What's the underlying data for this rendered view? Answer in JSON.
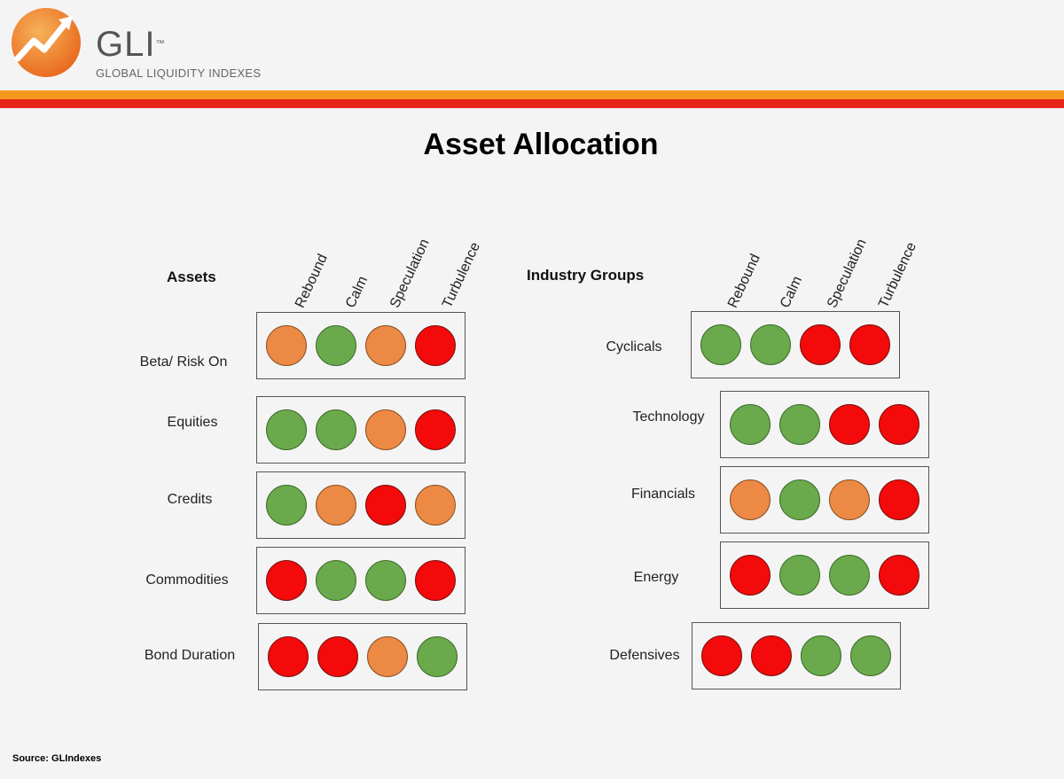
{
  "header": {
    "logo_title": "GLI",
    "logo_tm": "™",
    "logo_subtitle": "GLOBAL LIQUIDITY INDEXES"
  },
  "title": "Asset Allocation",
  "columns": [
    "Rebound",
    "Calm",
    "Speculation",
    "Turbulence"
  ],
  "assets": {
    "heading": "Assets",
    "rows": [
      {
        "label": "Beta/ Risk On",
        "signals": [
          "orange",
          "green",
          "orange",
          "red"
        ]
      },
      {
        "label": "Equities",
        "signals": [
          "green",
          "green",
          "orange",
          "red"
        ]
      },
      {
        "label": "Credits",
        "signals": [
          "green",
          "orange",
          "red",
          "orange"
        ]
      },
      {
        "label": "Commodities",
        "signals": [
          "red",
          "green",
          "green",
          "red"
        ]
      },
      {
        "label": "Bond Duration",
        "signals": [
          "red",
          "red",
          "orange",
          "green"
        ]
      }
    ]
  },
  "industry": {
    "heading": "Industry Groups",
    "rows": [
      {
        "label": "Cyclicals",
        "signals": [
          "green",
          "green",
          "red",
          "red"
        ]
      },
      {
        "label": "Technology",
        "signals": [
          "green",
          "green",
          "red",
          "red"
        ]
      },
      {
        "label": "Financials",
        "signals": [
          "orange",
          "green",
          "orange",
          "red"
        ]
      },
      {
        "label": "Energy",
        "signals": [
          "red",
          "green",
          "green",
          "red"
        ]
      },
      {
        "label": "Defensives",
        "signals": [
          "red",
          "red",
          "green",
          "green"
        ]
      }
    ]
  },
  "colors": {
    "green": "#6aaa4c",
    "orange": "#ec8a45",
    "red": "#f40a0a",
    "band_orange": "#f39a1e",
    "band_red": "#e8251b"
  },
  "source": "Source: GLIndexes"
}
